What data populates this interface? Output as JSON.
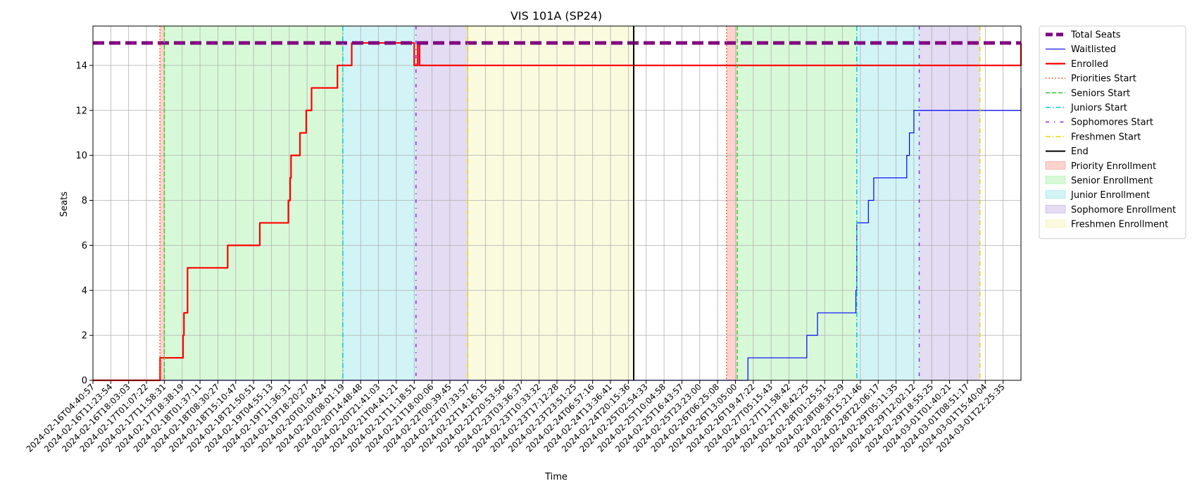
{
  "chart_data": {
    "type": "line",
    "title": "VIS 101A (SP24)",
    "xlabel": "Time",
    "ylabel": "Seats",
    "ylim": [
      0,
      15.75
    ],
    "yticks": [
      0,
      2,
      4,
      6,
      8,
      10,
      12,
      14
    ],
    "grid": true,
    "legend_position": "outside-top-right",
    "x_tick_labels": [
      "2024-02-16T04:40:57",
      "2024-02-16T11:23:54",
      "2024-02-16T18:03:03",
      "2024-02-17T01:07:22",
      "2024-02-17T11:58:31",
      "2024-02-17T18:38:19",
      "2024-02-18T01:37:11",
      "2024-02-18T08:30:27",
      "2024-02-18T15:10:47",
      "2024-02-18T21:50:51",
      "2024-02-19T04:55:13",
      "2024-02-19T11:36:31",
      "2024-02-19T18:20:27",
      "2024-02-20T01:04:24",
      "2024-02-20T08:01:19",
      "2024-02-20T14:48:48",
      "2024-02-20T21:41:03",
      "2024-02-21T04:41:21",
      "2024-02-21T11:18:51",
      "2024-02-21T18:00:06",
      "2024-02-22T00:39:45",
      "2024-02-22T07:33:57",
      "2024-02-22T14:16:15",
      "2024-02-22T20:53:56",
      "2024-02-23T03:36:37",
      "2024-02-23T10:33:32",
      "2024-02-23T17:12:28",
      "2024-02-23T23:51:25",
      "2024-02-24T06:57:16",
      "2024-02-24T13:36:41",
      "2024-02-24T20:15:36",
      "2024-02-25T02:54:33",
      "2024-02-25T10:04:58",
      "2024-02-25T16:43:57",
      "2024-02-25T23:23:00",
      "2024-02-26T06:25:08",
      "2024-02-26T13:05:00",
      "2024-02-26T19:47:22",
      "2024-02-27T05:15:43",
      "2024-02-27T11:58:42",
      "2024-02-27T18:42:25",
      "2024-02-28T01:25:51",
      "2024-02-28T08:35:29",
      "2024-02-28T15:21:46",
      "2024-02-28T22:06:17",
      "2024-02-29T05:11:35",
      "2024-02-29T12:02:12",
      "2024-02-29T18:55:25",
      "2024-03-01T01:40:21",
      "2024-03-01T08:51:17",
      "2024-03-01T15:40:04",
      "2024-03-01T22:25:35"
    ],
    "x_range": [
      0,
      52
    ],
    "series": [
      {
        "name": "Total Seats",
        "color": "#800080",
        "style": "dashed-thick",
        "x": [
          0,
          52
        ],
        "y": [
          15,
          15
        ]
      },
      {
        "name": "Waitlisted",
        "color": "#0000ff",
        "style": "solid",
        "x": [
          0,
          35.6,
          36.6,
          36.7,
          39.9,
          40.0,
          40.5,
          40.6,
          42.7,
          42.75,
          42.8,
          43.4,
          43.45,
          43.7,
          43.75,
          45.5,
          45.6,
          45.75,
          46.0,
          52
        ],
        "y": [
          0,
          0,
          0,
          1,
          1,
          2,
          2,
          3,
          3,
          4,
          7,
          7,
          8,
          8,
          9,
          9,
          10,
          11,
          12,
          13
        ]
      },
      {
        "name": "Enrolled",
        "color": "#ff0000",
        "style": "solid-thick",
        "x": [
          0,
          3.75,
          3.76,
          5.0,
          5.05,
          5.1,
          5.2,
          5.3,
          5.4,
          7.5,
          7.55,
          9.3,
          9.35,
          10.9,
          10.95,
          11.05,
          11.1,
          11.5,
          11.6,
          11.9,
          11.95,
          12.2,
          12.25,
          13.7,
          13.75,
          14.4,
          14.5,
          17.95,
          18.0,
          18.1,
          18.2,
          18.3,
          52
        ],
        "y": [
          0,
          0,
          1,
          1,
          2,
          3,
          3,
          5,
          5,
          5,
          6,
          6,
          7,
          7,
          8,
          9,
          10,
          10,
          11,
          11,
          12,
          12,
          13,
          14,
          14,
          14,
          15,
          15,
          14,
          14,
          15,
          14,
          15
        ]
      }
    ],
    "vlines": [
      {
        "name": "Priorities Start",
        "color": "#ff4500",
        "style": "dotted",
        "x": [
          3.75,
          35.5
        ]
      },
      {
        "name": "Seniors Start",
        "color": "#32cd32",
        "style": "dashed",
        "x": [
          4.0,
          36.1
        ]
      },
      {
        "name": "Juniors Start",
        "color": "#00ced1",
        "style": "dashdot",
        "x": [
          14.0,
          42.8
        ]
      },
      {
        "name": "Sophomores Start",
        "color": "#8a2be2",
        "style": "loose-dashdot",
        "x": [
          18.1,
          46.3
        ]
      },
      {
        "name": "Freshmen Start",
        "color": "#e5d800",
        "style": "dashdot",
        "x": [
          21.0,
          49.7
        ]
      },
      {
        "name": "End",
        "color": "#000000",
        "style": "solid",
        "x": [
          30.3
        ]
      }
    ],
    "regions": [
      {
        "name": "Priority Enrollment",
        "color": "#fa8072",
        "spans": [
          [
            3.75,
            4.0
          ],
          [
            35.5,
            36.1
          ]
        ]
      },
      {
        "name": "Senior Enrollment",
        "color": "#90ee90",
        "spans": [
          [
            4.0,
            14.0
          ],
          [
            36.1,
            42.8
          ]
        ]
      },
      {
        "name": "Junior Enrollment",
        "color": "#7fdfe6",
        "spans": [
          [
            14.0,
            18.1
          ],
          [
            42.8,
            46.3
          ]
        ]
      },
      {
        "name": "Sophomore Enrollment",
        "color": "#b19cd9",
        "spans": [
          [
            18.1,
            21.0
          ],
          [
            46.3,
            49.7
          ]
        ]
      },
      {
        "name": "Freshmen Enrollment",
        "color": "#f0f0a0",
        "spans": [
          [
            21.0,
            30.3
          ]
        ]
      }
    ],
    "legend": [
      {
        "label": "Total Seats",
        "kind": "line",
        "color": "#800080",
        "style": "dashed-thick"
      },
      {
        "label": "Waitlisted",
        "kind": "line",
        "color": "#0000ff",
        "style": "solid"
      },
      {
        "label": "Enrolled",
        "kind": "line",
        "color": "#ff0000",
        "style": "solid-thick"
      },
      {
        "label": "Priorities Start",
        "kind": "line",
        "color": "#ff4500",
        "style": "dotted"
      },
      {
        "label": "Seniors Start",
        "kind": "line",
        "color": "#32cd32",
        "style": "dashed"
      },
      {
        "label": "Juniors Start",
        "kind": "line",
        "color": "#00ced1",
        "style": "dashdot"
      },
      {
        "label": "Sophomores Start",
        "kind": "line",
        "color": "#8a2be2",
        "style": "loose-dashdot"
      },
      {
        "label": "Freshmen Start",
        "kind": "line",
        "color": "#e5d800",
        "style": "dashdot"
      },
      {
        "label": "End",
        "kind": "line",
        "color": "#000000",
        "style": "solid"
      },
      {
        "label": "Priority Enrollment",
        "kind": "patch",
        "color": "#fa8072"
      },
      {
        "label": "Senior Enrollment",
        "kind": "patch",
        "color": "#90ee90"
      },
      {
        "label": "Junior Enrollment",
        "kind": "patch",
        "color": "#7fdfe6"
      },
      {
        "label": "Sophomore Enrollment",
        "kind": "patch",
        "color": "#b19cd9"
      },
      {
        "label": "Freshmen Enrollment",
        "kind": "patch",
        "color": "#f0f0a0"
      }
    ]
  }
}
